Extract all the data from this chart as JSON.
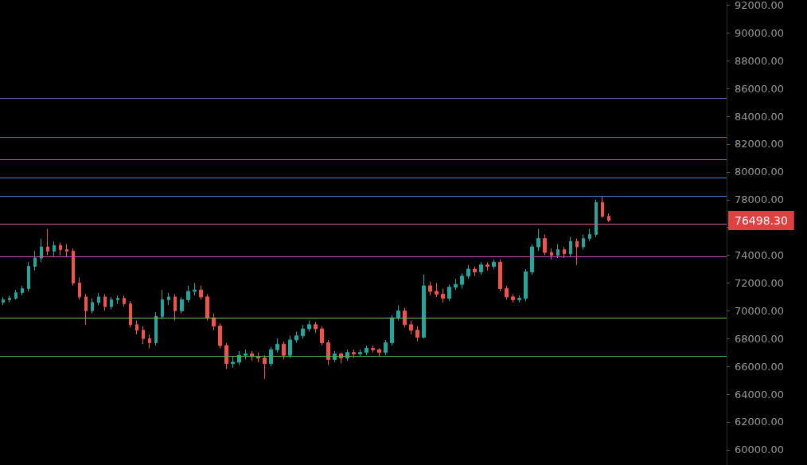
{
  "chart_data": {
    "type": "candlestick",
    "categories": [
      null,
      null,
      null,
      null,
      null,
      null,
      null,
      null,
      null,
      null,
      null,
      null,
      null,
      null,
      null,
      null,
      null,
      null,
      null,
      null,
      null,
      null,
      null,
      null,
      null,
      null,
      null,
      null,
      null,
      null,
      null,
      null,
      null,
      null,
      null,
      null,
      null,
      null,
      null,
      null,
      null,
      null,
      null,
      null,
      null,
      null,
      null,
      null,
      null,
      null,
      null,
      null,
      null,
      null,
      null,
      null,
      null,
      null,
      null,
      null,
      null,
      null,
      null,
      null,
      null,
      null,
      null,
      null,
      null,
      null,
      null,
      null,
      null,
      null,
      null,
      null,
      null,
      null,
      null,
      null,
      null,
      null,
      null,
      null,
      null,
      null,
      null,
      null,
      null,
      null,
      null,
      null,
      null,
      null,
      null,
      null,
      null,
      null,
      null,
      null,
      null,
      null,
      null,
      null,
      null,
      null,
      null,
      null,
      null,
      null,
      null,
      null,
      null,
      null
    ],
    "ohlc": [
      [
        70600,
        71000,
        70400,
        70800
      ],
      [
        70800,
        71100,
        70600,
        70900
      ],
      [
        70900,
        71500,
        70800,
        71300
      ],
      [
        71300,
        71800,
        71100,
        71600
      ],
      [
        71600,
        73500,
        71400,
        73200
      ],
      [
        73200,
        74300,
        72900,
        73800
      ],
      [
        73800,
        75200,
        73500,
        74600
      ],
      [
        74600,
        75900,
        74000,
        74300
      ],
      [
        74300,
        75000,
        73900,
        74700
      ],
      [
        74700,
        74900,
        74000,
        74400
      ],
      [
        74400,
        74800,
        73900,
        74300
      ],
      [
        74300,
        74500,
        71800,
        72000
      ],
      [
        72000,
        72400,
        70800,
        71000
      ],
      [
        71000,
        71200,
        69000,
        70000
      ],
      [
        70000,
        70900,
        69800,
        70600
      ],
      [
        70600,
        71300,
        70400,
        71000
      ],
      [
        71000,
        71200,
        70000,
        70300
      ],
      [
        70300,
        71000,
        70100,
        70800
      ],
      [
        70800,
        71100,
        70500,
        70900
      ],
      [
        70900,
        71100,
        70300,
        70500
      ],
      [
        70500,
        70700,
        68800,
        69000
      ],
      [
        69000,
        69300,
        68300,
        68600
      ],
      [
        68600,
        68900,
        67600,
        68000
      ],
      [
        68000,
        68300,
        67300,
        67700
      ],
      [
        67700,
        69900,
        67500,
        69600
      ],
      [
        69600,
        71500,
        69400,
        70800
      ],
      [
        70800,
        71300,
        70400,
        71000
      ],
      [
        71000,
        71200,
        69300,
        70000
      ],
      [
        70000,
        71000,
        69800,
        70800
      ],
      [
        70800,
        71800,
        70600,
        71400
      ],
      [
        71400,
        72000,
        71100,
        71500
      ],
      [
        71500,
        71800,
        70800,
        71000
      ],
      [
        71000,
        71200,
        69300,
        69500
      ],
      [
        69500,
        69800,
        68600,
        68900
      ],
      [
        68900,
        69100,
        67300,
        67500
      ],
      [
        67500,
        67700,
        65800,
        66200
      ],
      [
        66200,
        66700,
        65900,
        66300
      ],
      [
        66300,
        67100,
        66100,
        66800
      ],
      [
        66800,
        67200,
        66500,
        66900
      ],
      [
        66900,
        67100,
        66400,
        66700
      ],
      [
        66700,
        67000,
        66300,
        66600
      ],
      [
        66600,
        66800,
        65100,
        66200
      ],
      [
        66200,
        67400,
        66000,
        67200
      ],
      [
        67200,
        68000,
        67000,
        67600
      ],
      [
        67600,
        67800,
        66500,
        66800
      ],
      [
        66800,
        68200,
        66600,
        67900
      ],
      [
        67900,
        68500,
        67700,
        68200
      ],
      [
        68200,
        69000,
        68000,
        68700
      ],
      [
        68700,
        69300,
        68500,
        69000
      ],
      [
        69000,
        69200,
        68400,
        68700
      ],
      [
        68700,
        68900,
        67500,
        67700
      ],
      [
        67700,
        67900,
        66100,
        66500
      ],
      [
        66500,
        67100,
        66300,
        66900
      ],
      [
        66900,
        67000,
        66200,
        66600
      ],
      [
        66600,
        67200,
        66400,
        67000
      ],
      [
        67000,
        67200,
        66600,
        66900
      ],
      [
        66900,
        67200,
        66700,
        67000
      ],
      [
        67000,
        67500,
        66800,
        67300
      ],
      [
        67300,
        67500,
        67000,
        67200
      ],
      [
        67200,
        67300,
        66700,
        67000
      ],
      [
        67000,
        67900,
        66800,
        67700
      ],
      [
        67700,
        69700,
        67500,
        69500
      ],
      [
        69500,
        70400,
        69300,
        70000
      ],
      [
        70000,
        70200,
        68800,
        69000
      ],
      [
        69000,
        69300,
        68300,
        68600
      ],
      [
        68600,
        68900,
        67800,
        68100
      ],
      [
        68100,
        72600,
        68000,
        71800
      ],
      [
        71800,
        72100,
        71100,
        71400
      ],
      [
        71400,
        72000,
        71000,
        71200
      ],
      [
        71200,
        71600,
        70600,
        70900
      ],
      [
        70900,
        71900,
        70700,
        71700
      ],
      [
        71700,
        72300,
        71500,
        71900
      ],
      [
        71900,
        72700,
        71600,
        72500
      ],
      [
        72500,
        73300,
        72300,
        73000
      ],
      [
        73000,
        73200,
        72500,
        72800
      ],
      [
        72800,
        73500,
        72600,
        73300
      ],
      [
        73300,
        73500,
        72900,
        73200
      ],
      [
        73200,
        73700,
        73000,
        73500
      ],
      [
        73500,
        73700,
        71400,
        71600
      ],
      [
        71600,
        71800,
        70800,
        71000
      ],
      [
        71000,
        71200,
        70600,
        70800
      ],
      [
        70800,
        71100,
        70600,
        70900
      ],
      [
        70900,
        73000,
        70700,
        72800
      ],
      [
        72800,
        74800,
        72600,
        74600
      ],
      [
        74600,
        75900,
        74300,
        75200
      ],
      [
        75200,
        75500,
        74000,
        74200
      ],
      [
        74200,
        74500,
        73700,
        74000
      ],
      [
        74000,
        74800,
        73800,
        74400
      ],
      [
        74400,
        74600,
        73800,
        74100
      ],
      [
        74100,
        75300,
        73900,
        75000
      ],
      [
        75000,
        75200,
        73300,
        74600
      ],
      [
        74600,
        75500,
        74400,
        75200
      ],
      [
        75200,
        75900,
        75000,
        75500
      ],
      [
        75500,
        78000,
        75300,
        77800
      ],
      [
        77800,
        78200,
        76700,
        76800
      ],
      [
        76800,
        77000,
        76400,
        76498.3
      ],
      null,
      null,
      null,
      null,
      null,
      null,
      null,
      null,
      null,
      null,
      null,
      null,
      null,
      null,
      null,
      null,
      null,
      null
    ],
    "colors": [
      "#26a69a",
      "#26a69a",
      "#26a69a",
      "#26a69a",
      "#26a69a",
      "#26a69a",
      "#26a69a",
      "#ef5350",
      "#26a69a",
      "#ef5350",
      "#ef5350",
      "#ef5350",
      "#ef5350",
      "#ef5350",
      "#26a69a",
      "#26a69a",
      "#ef5350",
      "#26a69a",
      "#26a69a",
      "#ef5350",
      "#ef5350",
      "#ef5350",
      "#ef5350",
      "#ef5350",
      "#26a69a",
      "#26a69a",
      "#26a69a",
      "#ef5350",
      "#26a69a",
      "#26a69a",
      "#26a69a",
      "#ef5350",
      "#ef5350",
      "#ef5350",
      "#ef5350",
      "#ef5350",
      "#26a69a",
      "#26a69a",
      "#26a69a",
      "#ef5350",
      "#ef5350",
      "#ef5350",
      "#26a69a",
      "#26a69a",
      "#ef5350",
      "#26a69a",
      "#26a69a",
      "#26a69a",
      "#26a69a",
      "#ef5350",
      "#ef5350",
      "#ef5350",
      "#26a69a",
      "#ef5350",
      "#26a69a",
      "#ef5350",
      "#26a69a",
      "#26a69a",
      "#ef5350",
      "#ef5350",
      "#26a69a",
      "#26a69a",
      "#26a69a",
      "#ef5350",
      "#ef5350",
      "#ef5350",
      "#26a69a",
      "#ef5350",
      "#ef5350",
      "#ef5350",
      "#26a69a",
      "#26a69a",
      "#26a69a",
      "#26a69a",
      "#ef5350",
      "#26a69a",
      "#ef5350",
      "#26a69a",
      "#ef5350",
      "#ef5350",
      "#ef5350",
      "#26a69a",
      "#26a69a",
      "#26a69a",
      "#26a69a",
      "#ef5350",
      "#ef5350",
      "#26a69a",
      "#ef5350",
      "#26a69a",
      "#ef5350",
      "#26a69a",
      "#26a69a",
      "#26a69a",
      "#ef5350",
      "#ef5350",
      null,
      null,
      null,
      null,
      null,
      null,
      null,
      null,
      null,
      null,
      null,
      null,
      null,
      null,
      null,
      null,
      null,
      null
    ],
    "ylim": [
      58900,
      92200
    ],
    "yticks": [
      {
        "value": 60000,
        "label": "60000.00"
      },
      {
        "value": 62000,
        "label": "62000.00"
      },
      {
        "value": 64000,
        "label": "64000.00"
      },
      {
        "value": 66000,
        "label": "66000.00"
      },
      {
        "value": 68000,
        "label": "68000.00"
      },
      {
        "value": 70000,
        "label": "70000.00"
      },
      {
        "value": 72000,
        "label": "72000.00"
      },
      {
        "value": 74000,
        "label": "74000.00"
      },
      {
        "value": 76000,
        "label": null
      },
      {
        "value": 78000,
        "label": "78000.00"
      },
      {
        "value": 80000,
        "label": "80000.00"
      },
      {
        "value": 82000,
        "label": "82000.00"
      },
      {
        "value": 84000,
        "label": "84000.00"
      },
      {
        "value": 86000,
        "label": "86000.00"
      },
      {
        "value": 88000,
        "label": "88000.00"
      },
      {
        "value": 90000,
        "label": "90000.00"
      },
      {
        "value": 92000,
        "label": "92000.00"
      }
    ],
    "tick_labels": "y",
    "grid": false,
    "ref_lines": [
      {
        "axis": "y",
        "value": 85300,
        "color": "#7e57c2"
      },
      {
        "axis": "y",
        "value": 82500,
        "color": "#9c4fc9"
      },
      {
        "axis": "y",
        "value": 80900,
        "color": "#9c4fc9"
      },
      {
        "axis": "y",
        "value": 79600,
        "color": "#4a7fd6"
      },
      {
        "axis": "y",
        "value": 78250,
        "color": "#4a7fd6"
      },
      {
        "axis": "y",
        "value": 76250,
        "color": "#d0559e"
      },
      {
        "axis": "y",
        "value": 73900,
        "color": "#c04fa6"
      },
      {
        "axis": "y",
        "value": 69500,
        "color": "#6cc05a"
      },
      {
        "axis": "y",
        "value": 66750,
        "color": "#4caf50"
      }
    ],
    "annotations": [
      "76498.30"
    ]
  }
}
